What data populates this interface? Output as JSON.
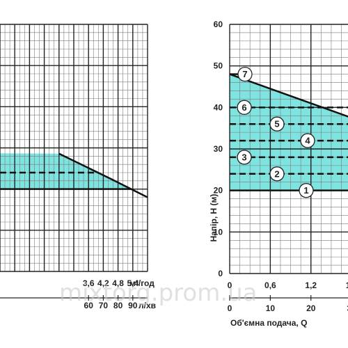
{
  "chart_data": [
    {
      "type": "area",
      "x_axis_primary": {
        "ticks": [
          "3,6",
          "4,2",
          "4,8",
          "5,4"
        ],
        "unit": "м³/год",
        "range": [
          0,
          6.0
        ]
      },
      "x_axis_secondary": {
        "ticks": [
          "60",
          "70",
          "80",
          "90"
        ],
        "unit": "л/хв"
      },
      "series": [
        {
          "kind": "envelope",
          "points": [
            [
              2.4,
              28.6
            ],
            [
              4.5,
              22.5
            ],
            [
              6.0,
              18.0
            ]
          ]
        }
      ],
      "band": {
        "y_low": 20,
        "dashed_level": 24
      },
      "colors": {
        "fill": "#7fe3e0",
        "line": "#111111",
        "grid": "#7a7a7a"
      }
    },
    {
      "type": "area",
      "y_axis": {
        "label": "Напір, H (м)",
        "ticks": [
          "0",
          "10",
          "20",
          "30",
          "40",
          "50",
          "60"
        ],
        "range": [
          0,
          60
        ]
      },
      "x_axis_primary": {
        "ticks": [
          "0",
          "0,6",
          "1,2",
          "1,8"
        ],
        "range": [
          0,
          2.4
        ]
      },
      "x_axis_secondary": {
        "ticks": [
          "0",
          "10",
          "20",
          "30"
        ]
      },
      "xlabel": "Об'ємна подача, Q",
      "series": [
        {
          "kind": "envelope",
          "points": [
            [
              0,
              48
            ],
            [
              2.4,
              34
            ]
          ]
        }
      ],
      "dashed_levels": [
        {
          "marker": "1",
          "value": 20
        },
        {
          "marker": "2",
          "value": 24
        },
        {
          "marker": "3",
          "value": 28
        },
        {
          "marker": "4",
          "value": 32
        },
        {
          "marker": "5",
          "value": 36
        },
        {
          "marker": "6",
          "value": 40
        },
        {
          "marker": "7",
          "value": 48
        }
      ],
      "colors": {
        "fill": "#7fe3e0",
        "line": "#111111",
        "grid": "#7a7a7a"
      }
    }
  ],
  "watermark": "mixtorg.prom.ua"
}
